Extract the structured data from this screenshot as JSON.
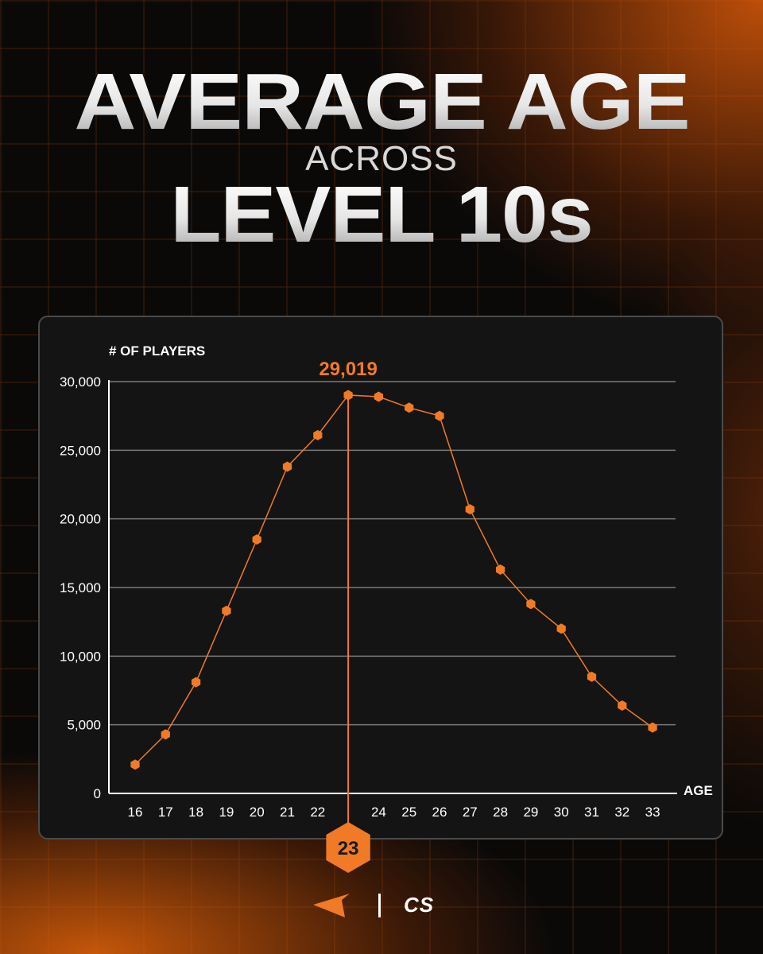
{
  "title": {
    "line1": "AVERAGE AGE",
    "line2": "ACROSS",
    "line3": "LEVEL 10s"
  },
  "colors": {
    "accent": "#f07a25",
    "background": "#0b0908",
    "panel": "#141414",
    "gridline": "#7a7a7a"
  },
  "logos": {
    "left": "faceit-icon",
    "right_text": "CS"
  },
  "chart_data": {
    "type": "line",
    "ylabel": "# OF PLAYERS",
    "xlabel": "AGE",
    "x": [
      16,
      17,
      18,
      19,
      20,
      21,
      22,
      23,
      24,
      25,
      26,
      27,
      28,
      29,
      30,
      31,
      32,
      33
    ],
    "values": [
      2100,
      4300,
      8100,
      13300,
      18500,
      23800,
      26100,
      29019,
      28900,
      28100,
      27500,
      20700,
      16300,
      13800,
      12000,
      8500,
      6400,
      4800
    ],
    "ylim": [
      0,
      30000
    ],
    "yticks": [
      "0",
      "5,000",
      "10,000",
      "15,000",
      "20,000",
      "25,000",
      "30,000"
    ],
    "ytick_values": [
      0,
      5000,
      10000,
      15000,
      20000,
      25000,
      30000
    ],
    "xtick_labels": [
      "16",
      "17",
      "18",
      "19",
      "20",
      "21",
      "22",
      "23",
      "24",
      "25",
      "26",
      "27",
      "28",
      "29",
      "30",
      "31",
      "32",
      "33"
    ],
    "peak": {
      "x": 23,
      "value_label": "29,019",
      "badge": "23"
    },
    "grid": true
  }
}
